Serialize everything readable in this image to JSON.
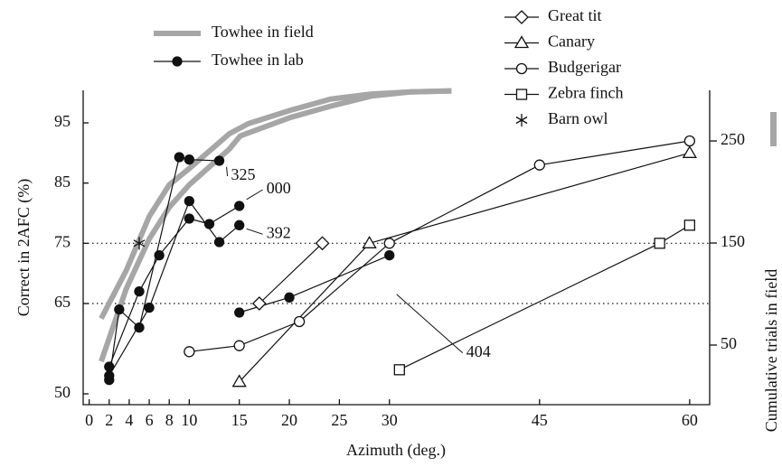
{
  "chart_data": {
    "type": "line",
    "x_label": "Azimuth (deg.)",
    "y_label": "Correct in 2AFC (%)",
    "y2_label": "Cumulative trials in field",
    "xlim": [
      -0.6,
      62
    ],
    "ylim": [
      48.2,
      100.4
    ],
    "y2lim": [
      -8.4,
      299.6
    ],
    "xticks": [
      0,
      2,
      4,
      6,
      8,
      10,
      15,
      20,
      25,
      30,
      45,
      60
    ],
    "yticks": [
      50,
      65,
      75,
      85,
      95
    ],
    "y2ticks": [
      50,
      150,
      250
    ],
    "reference_lines": [
      75,
      65
    ],
    "series": [
      {
        "name": "Towhee in field",
        "color": "#a6a6a6",
        "axis": "y2",
        "marker": "none",
        "lines": [
          {
            "x": [
              1.2,
              3.7,
              6.0,
              8.0,
              10.0,
              14.0,
              15.9,
              20.1,
              24.1,
              28.2,
              32.1,
              36.2
            ],
            "values": [
              76,
              123,
              176,
              207,
              223,
              257,
              267,
              280,
              291,
              296,
              298,
              299
            ]
          },
          {
            "x": [
              1.2,
              3.7,
              6.0,
              8.0,
              10.0,
              14.0,
              15.1,
              20.1,
              24.1,
              28.2,
              32.1,
              36.2
            ],
            "values": [
              34,
              105,
              154,
              185,
              207,
              242,
              255,
              273,
              284,
              294,
              298,
              299
            ]
          }
        ]
      },
      {
        "name": "Towhee in lab",
        "color": "#111111",
        "marker": "filled-circle",
        "birds": [
          {
            "label": "325",
            "x": [
              2,
              3,
              5,
              9,
              10,
              13
            ],
            "values": [
              52.3,
              64,
              61,
              89.3,
              88.9,
              88.7
            ]
          },
          {
            "label": "000",
            "x": [
              2,
              5,
              7,
              10,
              12,
              15
            ],
            "values": [
              54.5,
              67,
              73,
              79.1,
              78.2,
              81.2
            ]
          },
          {
            "label": "392",
            "x": [
              2,
              6,
              10,
              13,
              15
            ],
            "values": [
              53,
              64.3,
              82,
              75.2,
              78
            ]
          },
          {
            "label": "404",
            "x": [
              15,
              20,
              30
            ],
            "values": [
              63.5,
              66,
              73
            ]
          }
        ]
      },
      {
        "name": "Great tit",
        "color": "#111111",
        "marker": "diamond",
        "x": [
          17,
          23.3
        ],
        "values": [
          65,
          75
        ]
      },
      {
        "name": "Canary",
        "color": "#111111",
        "marker": "triangle",
        "x": [
          15,
          28,
          60
        ],
        "values": [
          52,
          75,
          90
        ]
      },
      {
        "name": "Budgerigar",
        "color": "#111111",
        "marker": "circle",
        "x": [
          10,
          15,
          21,
          30,
          45,
          60
        ],
        "values": [
          57,
          58,
          62,
          75,
          88,
          92
        ]
      },
      {
        "name": "Zebra finch",
        "color": "#111111",
        "marker": "square",
        "x": [
          31,
          57,
          60
        ],
        "values": [
          54,
          75,
          78
        ]
      },
      {
        "name": "Barn owl",
        "color": "#111111",
        "marker": "asterisk",
        "x": [
          5
        ],
        "values": [
          75
        ]
      }
    ]
  }
}
